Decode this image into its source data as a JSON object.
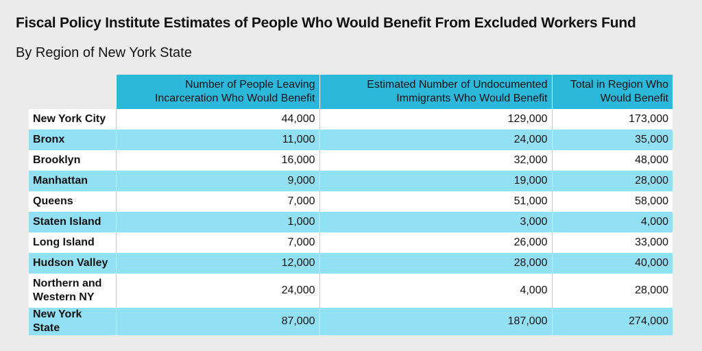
{
  "chart_data": {
    "type": "table",
    "title": "Fiscal Policy Institute Estimates of People Who Would Benefit From Excluded Workers Fund",
    "subtitle": "By Region of New York State",
    "columns": [
      "",
      "Number of People Leaving Incarceration Who Would Benefit",
      "Estimated Number of Undocumented Immigrants Who Would Benefit",
      "Total in Region Who Would Benefit"
    ],
    "rows": [
      {
        "region": "New York City",
        "incarceration": "44,000",
        "undocumented": "129,000",
        "total": "173,000"
      },
      {
        "region": "Bronx",
        "incarceration": "11,000",
        "undocumented": "24,000",
        "total": "35,000"
      },
      {
        "region": "Brooklyn",
        "incarceration": "16,000",
        "undocumented": "32,000",
        "total": "48,000"
      },
      {
        "region": "Manhattan",
        "incarceration": "9,000",
        "undocumented": "19,000",
        "total": "28,000"
      },
      {
        "region": "Queens",
        "incarceration": "7,000",
        "undocumented": "51,000",
        "total": "58,000"
      },
      {
        "region": "Staten Island",
        "incarceration": "1,000",
        "undocumented": "3,000",
        "total": "4,000"
      },
      {
        "region": "Long Island",
        "incarceration": "7,000",
        "undocumented": "26,000",
        "total": "33,000"
      },
      {
        "region": "Hudson Valley",
        "incarceration": "12,000",
        "undocumented": "28,000",
        "total": "40,000"
      },
      {
        "region": "Northern and Western NY",
        "incarceration": "24,000",
        "undocumented": "4,000",
        "total": "28,000"
      },
      {
        "region": "New York State",
        "incarceration": "87,000",
        "undocumented": "187,000",
        "total": "274,000"
      }
    ]
  },
  "colors": {
    "header_bg": "#2bb8db",
    "band_bg": "#92e0f4",
    "row_bg": "#ffffff",
    "page_bg": "#ebebeb"
  }
}
